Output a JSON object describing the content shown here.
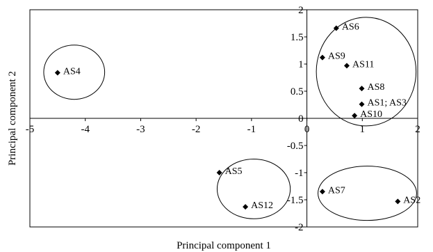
{
  "chart_data": {
    "type": "scatter",
    "title": "",
    "xlabel": "Principal component 1",
    "ylabel": "Principal component 2",
    "xlim": [
      -5,
      2
    ],
    "ylim": [
      -2,
      2
    ],
    "xticks": [
      -5,
      -4,
      -3,
      -2,
      -1,
      0,
      1,
      2
    ],
    "yticks": [
      -2,
      -1.5,
      -1,
      -0.5,
      0,
      0.5,
      1,
      1.5,
      2
    ],
    "xtick_labels": [
      "-5",
      "-4",
      "-3",
      "-2",
      "-1",
      "0",
      "1",
      "2"
    ],
    "ytick_labels": [
      "-2",
      "-1.5",
      "-1",
      "-0.5",
      "0",
      "0.5",
      "1",
      "1.5",
      "2"
    ],
    "grid": false,
    "marker": "diamond",
    "points": [
      {
        "label": "AS4",
        "x": -4.5,
        "y": 0.84
      },
      {
        "label": "AS6",
        "x": 0.53,
        "y": 1.66
      },
      {
        "label": "AS9",
        "x": 0.28,
        "y": 1.12
      },
      {
        "label": "AS11",
        "x": 0.72,
        "y": 0.97
      },
      {
        "label": "AS8",
        "x": 0.99,
        "y": 0.55
      },
      {
        "label": "AS1; AS3",
        "x": 0.99,
        "y": 0.26
      },
      {
        "label": "AS10",
        "x": 0.86,
        "y": 0.05
      },
      {
        "label": "AS5",
        "x": -1.58,
        "y": -1.0
      },
      {
        "label": "AS12",
        "x": -1.11,
        "y": -1.63
      },
      {
        "label": "AS7",
        "x": 0.28,
        "y": -1.35
      },
      {
        "label": "AS2",
        "x": 1.64,
        "y": -1.53
      }
    ],
    "groups": [
      {
        "members": [
          "AS4"
        ],
        "cx": -4.2,
        "cy": 0.85,
        "rx": 0.55,
        "ry": 0.5
      },
      {
        "members": [
          "AS6",
          "AS9",
          "AS11",
          "AS8",
          "AS1; AS3",
          "AS10"
        ],
        "cx": 1.07,
        "cy": 0.86,
        "rx": 0.9,
        "ry": 1.0
      },
      {
        "members": [
          "AS5",
          "AS12"
        ],
        "cx": -0.96,
        "cy": -1.3,
        "rx": 0.66,
        "ry": 0.55
      },
      {
        "members": [
          "AS7",
          "AS2"
        ],
        "cx": 1.09,
        "cy": -1.38,
        "rx": 0.89,
        "ry": 0.5
      }
    ]
  }
}
